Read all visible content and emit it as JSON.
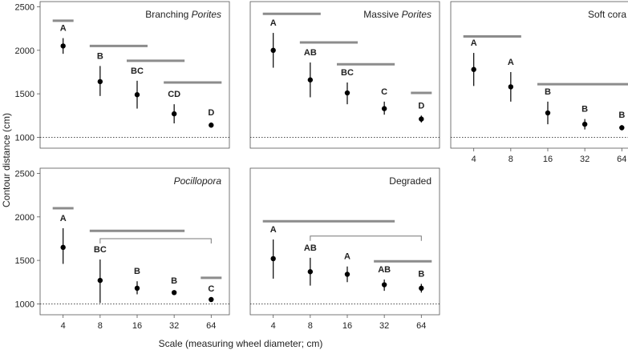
{
  "figure": {
    "ylabel": "Contour distance (cm)",
    "xlabel": "Scale (measuring wheel diameter; cm)"
  },
  "chart_data": [
    {
      "type": "errorbar",
      "title": [
        {
          "text": "Branching"
        },
        {
          "text": "Porites",
          "italic": true
        }
      ],
      "x": [
        4,
        8,
        16,
        32,
        64
      ],
      "values": [
        2050,
        1640,
        1490,
        1270,
        1140
      ],
      "lower": [
        1960,
        1475,
        1330,
        1160,
        1110
      ],
      "upper": [
        2140,
        1820,
        1650,
        1380,
        1170
      ],
      "labels": [
        "A",
        "B",
        "BC",
        "CD",
        "D"
      ],
      "bars": [
        {
          "from": 4,
          "to": 4,
          "value": 2340
        },
        {
          "from": 8,
          "to": 16,
          "value": 2050
        },
        {
          "from": 16,
          "to": 32,
          "value": 1880
        },
        {
          "from": 32,
          "to": 64,
          "value": 1630
        }
      ],
      "brackets": [],
      "xlim": [
        2.6,
        90
      ],
      "xlog": true,
      "xticks": [
        4,
        8,
        16,
        32,
        64
      ],
      "ylim": [
        875,
        2560
      ],
      "yticks": [
        1000,
        1500,
        2000,
        2500
      ],
      "reference_line": 1000,
      "color": "#000000",
      "bar_color": "#8c8c8c",
      "show_yticklabels": true,
      "show_xticklabels": false
    },
    {
      "type": "errorbar",
      "title": [
        {
          "text": "Massive"
        },
        {
          "text": "Porites",
          "italic": true
        }
      ],
      "x": [
        4,
        8,
        16,
        32,
        64
      ],
      "values": [
        2000,
        1660,
        1510,
        1330,
        1210
      ],
      "lower": [
        1800,
        1460,
        1380,
        1260,
        1170
      ],
      "upper": [
        2200,
        1860,
        1630,
        1410,
        1250
      ],
      "labels": [
        "A",
        "AB",
        "BC",
        "C",
        "D"
      ],
      "bars": [
        {
          "from": 4,
          "to": 8,
          "value": 2420
        },
        {
          "from": 8,
          "to": 16,
          "value": 2090
        },
        {
          "from": 16,
          "to": 32,
          "value": 1840
        },
        {
          "from": 64,
          "to": 64,
          "value": 1510
        }
      ],
      "brackets": [],
      "xlim": [
        2.6,
        90
      ],
      "xlog": true,
      "xticks": [
        4,
        8,
        16,
        32,
        64
      ],
      "ylim": [
        875,
        2560
      ],
      "yticks": [
        1000,
        1500,
        2000,
        2500
      ],
      "reference_line": 1000,
      "color": "#000000",
      "bar_color": "#8c8c8c",
      "show_yticklabels": false,
      "show_xticklabels": false
    },
    {
      "type": "errorbar",
      "title": [
        {
          "text": "Soft cora"
        }
      ],
      "x": [
        4,
        8,
        16,
        32,
        64
      ],
      "values": [
        1780,
        1580,
        1280,
        1150,
        1110
      ],
      "lower": [
        1590,
        1410,
        1150,
        1090,
        1080
      ],
      "upper": [
        1970,
        1750,
        1410,
        1210,
        1140
      ],
      "labels": [
        "A",
        "A",
        "B",
        "B",
        "B"
      ],
      "bars": [
        {
          "from": 4,
          "to": 8,
          "value": 2160
        },
        {
          "from": 16,
          "to": 64,
          "value": 1610
        }
      ],
      "brackets": [],
      "xlim": [
        2.6,
        90
      ],
      "xlog": true,
      "xticks": [
        4,
        8,
        16,
        32,
        64
      ],
      "ylim": [
        875,
        2560
      ],
      "yticks": [
        1000,
        1500,
        2000,
        2500
      ],
      "reference_line": 1000,
      "color": "#000000",
      "bar_color": "#8c8c8c",
      "show_yticklabels": false,
      "show_xticklabels": true
    },
    {
      "type": "errorbar",
      "title": [
        {
          "text": "Pocillopora",
          "italic": true
        }
      ],
      "x": [
        4,
        8,
        16,
        32,
        64
      ],
      "values": [
        1650,
        1270,
        1180,
        1130,
        1050
      ],
      "lower": [
        1460,
        1010,
        1110,
        1110,
        1040
      ],
      "upper": [
        1870,
        1510,
        1260,
        1150,
        1060
      ],
      "labels": [
        "A",
        "BC",
        "B",
        "B",
        "C"
      ],
      "bars": [
        {
          "from": 4,
          "to": 4,
          "value": 2100
        },
        {
          "from": 8,
          "to": 32,
          "value": 1840
        },
        {
          "from": 64,
          "to": 64,
          "value": 1300
        }
      ],
      "brackets": [
        {
          "from": 8,
          "to": 64,
          "value": 1750
        }
      ],
      "xlim": [
        2.6,
        90
      ],
      "xlog": true,
      "xticks": [
        4,
        8,
        16,
        32,
        64
      ],
      "ylim": [
        875,
        2560
      ],
      "yticks": [
        1000,
        1500,
        2000,
        2500
      ],
      "reference_line": 1000,
      "color": "#000000",
      "bar_color": "#8c8c8c",
      "show_yticklabels": true,
      "show_xticklabels": true
    },
    {
      "type": "errorbar",
      "title": [
        {
          "text": "Degraded"
        }
      ],
      "x": [
        4,
        8,
        16,
        32,
        64
      ],
      "values": [
        1520,
        1370,
        1340,
        1220,
        1180
      ],
      "lower": [
        1290,
        1210,
        1250,
        1150,
        1130
      ],
      "upper": [
        1740,
        1530,
        1430,
        1280,
        1230
      ],
      "labels": [
        "A",
        "AB",
        "A",
        "AB",
        "B"
      ],
      "bars": [
        {
          "from": 4,
          "to": 32,
          "value": 1950
        },
        {
          "from": 32,
          "to": 64,
          "value": 1490
        }
      ],
      "brackets": [
        {
          "from": 8,
          "to": 64,
          "value": 1780
        }
      ],
      "xlim": [
        2.6,
        90
      ],
      "xlog": true,
      "xticks": [
        4,
        8,
        16,
        32,
        64
      ],
      "ylim": [
        875,
        2560
      ],
      "yticks": [
        1000,
        1500,
        2000,
        2500
      ],
      "reference_line": 1000,
      "color": "#000000",
      "bar_color": "#8c8c8c",
      "show_yticklabels": false,
      "show_xticklabels": true
    }
  ]
}
